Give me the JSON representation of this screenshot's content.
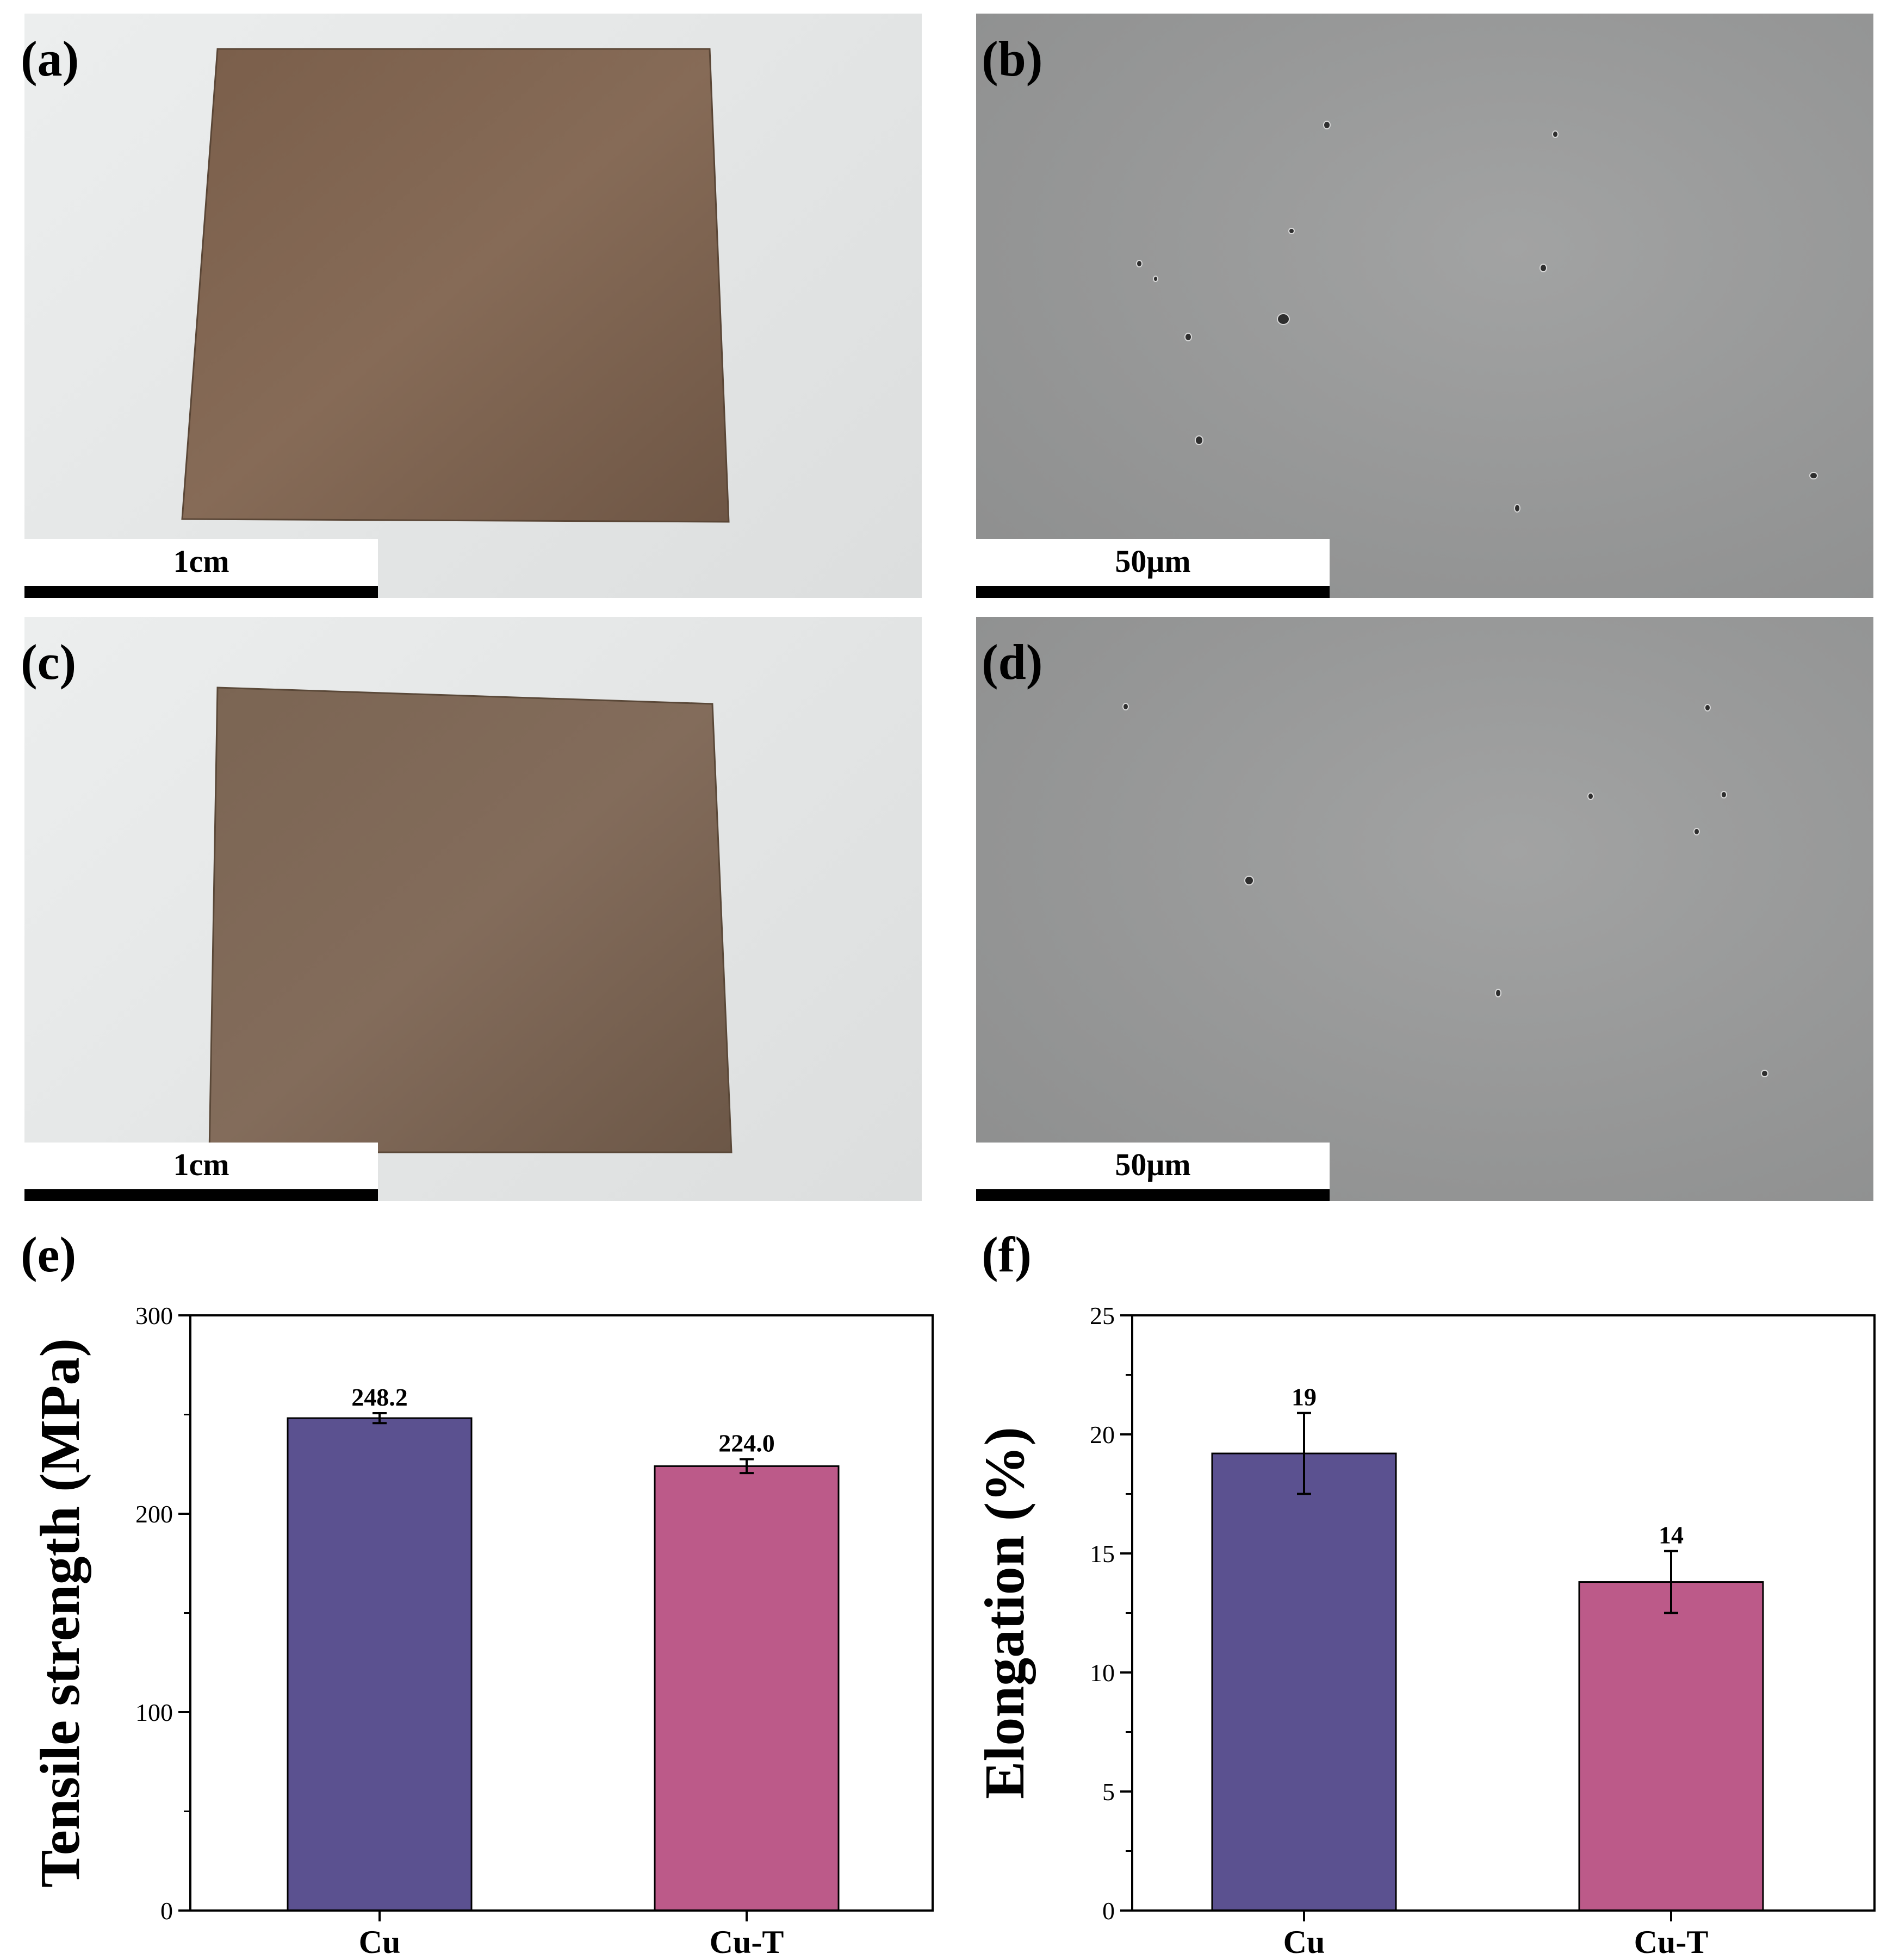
{
  "panels": {
    "a": {
      "label": "(a)",
      "scale": "1cm"
    },
    "b": {
      "label": "(b)",
      "scale": "50μm"
    },
    "c": {
      "label": "(c)",
      "scale": "1cm"
    },
    "d": {
      "label": "(d)",
      "scale": "50μm"
    },
    "e": {
      "label": "(e)"
    },
    "f": {
      "label": "(f)"
    }
  },
  "colors": {
    "cu": "#5b5190",
    "cu_t": "#bc5a89",
    "copper_foil": "#7e6654",
    "sem_gray": "#989999"
  },
  "chart_data": [
    {
      "type": "bar",
      "categories": [
        "Cu",
        "Cu-T"
      ],
      "values": [
        248.2,
        224.0
      ],
      "errors": [
        2.5,
        3.5
      ],
      "data_labels": [
        "248.2",
        "224.0"
      ],
      "ylabel": "Tensile strength (MPa)",
      "xlabel": "",
      "ylim": [
        0,
        300
      ],
      "yticks": [
        "0",
        "100",
        "200",
        "300"
      ],
      "bar_colors": [
        "#5b5190",
        "#bc5a89"
      ],
      "grid": false
    },
    {
      "type": "bar",
      "categories": [
        "Cu",
        "Cu-T"
      ],
      "values": [
        19.2,
        13.8
      ],
      "errors": [
        1.7,
        1.3
      ],
      "data_labels": [
        "19",
        "14"
      ],
      "ylabel": "Elongation (%)",
      "xlabel": "",
      "ylim": [
        0,
        25
      ],
      "yticks": [
        "0",
        "5",
        "10",
        "15",
        "20",
        "25"
      ],
      "bar_colors": [
        "#5b5190",
        "#bc5a89"
      ],
      "grid": false
    }
  ]
}
